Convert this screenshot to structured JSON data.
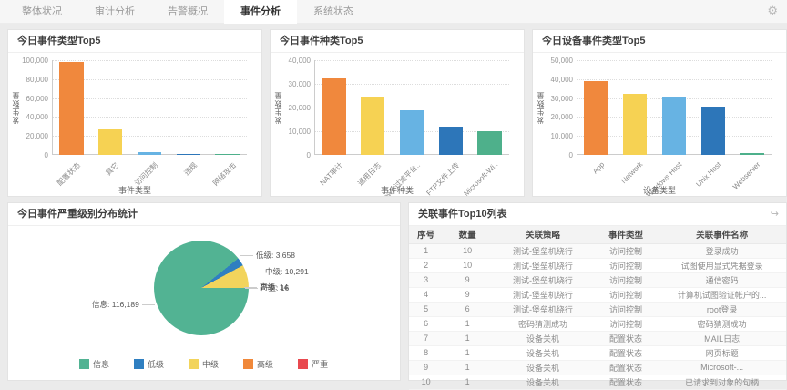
{
  "tabs": {
    "items": [
      {
        "label": "整体状况",
        "active": false
      },
      {
        "label": "审计分析",
        "active": false
      },
      {
        "label": "告警概况",
        "active": false
      },
      {
        "label": "事件分析",
        "active": true
      },
      {
        "label": "系统状态",
        "active": false
      }
    ]
  },
  "icons": {
    "gear": "⚙",
    "share": "↪"
  },
  "chart_data": [
    {
      "type": "bar",
      "title": "今日事件类型Top5",
      "categories": [
        "配置状态",
        "其它",
        "访问控制",
        "违规",
        "网络攻击"
      ],
      "values": [
        98500,
        26500,
        2600,
        1100,
        150
      ],
      "colors": [
        "#f0883d",
        "#f6d253",
        "#67b3e3",
        "#2d76b9",
        "#4eb08b"
      ],
      "xlabel": "事件类型",
      "ylabel": "发生数量",
      "ylim": [
        0,
        100000
      ],
      "yticks": [
        0,
        20000,
        40000,
        60000,
        80000,
        100000
      ],
      "grid": true,
      "legend_position": "none"
    },
    {
      "type": "bar",
      "title": "今日事件种类Top5",
      "categories": [
        "NAT审计",
        "通用日志",
        "Windows 过滤平台..",
        "FTP文件上传",
        "Microsoft-Wi.."
      ],
      "values": [
        32300,
        24300,
        19000,
        12000,
        10000
      ],
      "colors": [
        "#f0883d",
        "#f6d253",
        "#67b3e3",
        "#2d76b9",
        "#4eb08b"
      ],
      "xlabel": "事件种类",
      "ylabel": "发生数量",
      "ylim": [
        0,
        40000
      ],
      "yticks": [
        0,
        10000,
        20000,
        30000,
        40000
      ],
      "grid": true,
      "legend_position": "none"
    },
    {
      "type": "bar",
      "title": "今日设备事件类型Top5",
      "categories": [
        "App",
        "Network",
        "Windows Host",
        "Unix Host",
        "Webserver"
      ],
      "values": [
        39000,
        32300,
        31000,
        25500,
        1000
      ],
      "colors": [
        "#f0883d",
        "#f6d253",
        "#67b3e3",
        "#2d76b9",
        "#4eb08b"
      ],
      "xlabel": "设备类型",
      "ylabel": "发生数量",
      "ylim": [
        0,
        50000
      ],
      "yticks": [
        0,
        10000,
        20000,
        30000,
        40000,
        50000
      ],
      "grid": true,
      "legend_position": "none"
    },
    {
      "type": "pie",
      "title": "今日事件严重级别分布统计",
      "slices": [
        {
          "name": "信息",
          "value": 116189,
          "color": "#52b393"
        },
        {
          "name": "低级",
          "value": 3658,
          "color": "#2f7fc1"
        },
        {
          "name": "中级",
          "value": 10291,
          "color": "#f2d45c"
        },
        {
          "name": "高级",
          "value": 14,
          "color": "#f0883a"
        },
        {
          "name": "严重",
          "value": 16,
          "color": "#e9494f"
        }
      ],
      "legend": [
        "信息",
        "低级",
        "中级",
        "高级",
        "严重"
      ],
      "legend_position": "bottom",
      "label_separator": ": "
    },
    {
      "type": "table",
      "title": "关联事件Top10列表",
      "headers": [
        "序号",
        "数量",
        "关联策略",
        "事件类型",
        "关联事件名称"
      ],
      "col_widths": [
        "9%",
        "13%",
        "27%",
        "17%",
        "34%"
      ],
      "rows": [
        [
          "1",
          "10",
          "测试-堡垒机绕行",
          "访问控制",
          "登录成功"
        ],
        [
          "2",
          "10",
          "测试-堡垒机绕行",
          "访问控制",
          "试图使用显式凭据登录"
        ],
        [
          "3",
          "9",
          "测试-堡垒机绕行",
          "访问控制",
          "通信密码"
        ],
        [
          "4",
          "9",
          "测试-堡垒机绕行",
          "访问控制",
          "计算机试图验证帐户的..."
        ],
        [
          "5",
          "6",
          "测试-堡垒机绕行",
          "访问控制",
          "root登录"
        ],
        [
          "6",
          "1",
          "密码猜测成功",
          "访问控制",
          "密码猜测成功"
        ],
        [
          "7",
          "1",
          "设备关机",
          "配置状态",
          "MAIL日志"
        ],
        [
          "8",
          "1",
          "设备关机",
          "配置状态",
          "网页标题"
        ],
        [
          "9",
          "1",
          "设备关机",
          "配置状态",
          "Microsoft-..."
        ],
        [
          "10",
          "1",
          "设备关机",
          "配置状态",
          "已请求到对象的句柄"
        ]
      ]
    }
  ]
}
